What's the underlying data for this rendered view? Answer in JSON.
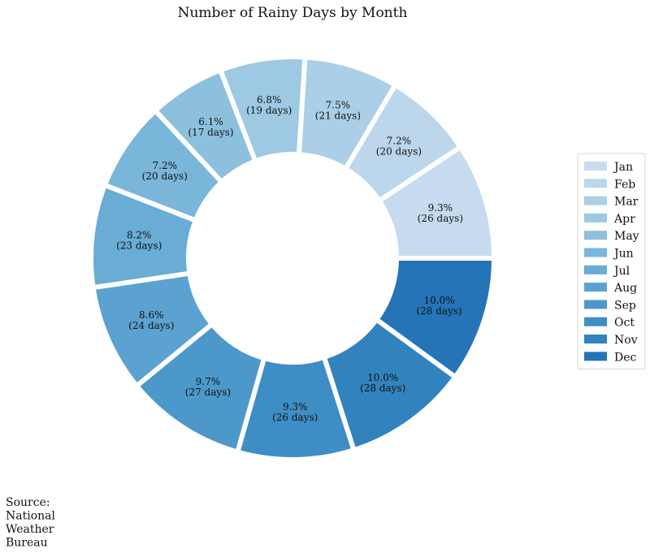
{
  "chart_data": {
    "type": "pie",
    "variant": "donut",
    "title": "Number of Rainy Days by Month",
    "start_angle_deg": 0,
    "direction": "counterclockwise",
    "unit_suffix": "days",
    "slices": [
      {
        "label": "Jan",
        "value": 26,
        "percent_label": "9.3%",
        "color": "#c6dbef"
      },
      {
        "label": "Feb",
        "value": 20,
        "percent_label": "7.2%",
        "color": "#bcd7ec"
      },
      {
        "label": "Mar",
        "value": 21,
        "percent_label": "7.5%",
        "color": "#aacfe6"
      },
      {
        "label": "Apr",
        "value": 19,
        "percent_label": "6.8%",
        "color": "#9dc9e2"
      },
      {
        "label": "May",
        "value": 17,
        "percent_label": "6.1%",
        "color": "#8dc0dd"
      },
      {
        "label": "Jun",
        "value": 20,
        "percent_label": "7.2%",
        "color": "#7ab6d9"
      },
      {
        "label": "Jul",
        "value": 23,
        "percent_label": "8.2%",
        "color": "#69acd5"
      },
      {
        "label": "Aug",
        "value": 24,
        "percent_label": "8.6%",
        "color": "#5ba2d0"
      },
      {
        "label": "Sep",
        "value": 27,
        "percent_label": "9.7%",
        "color": "#4d98ca"
      },
      {
        "label": "Oct",
        "value": 26,
        "percent_label": "9.3%",
        "color": "#3f8dc5"
      },
      {
        "label": "Nov",
        "value": 28,
        "percent_label": "10.0%",
        "color": "#3282be"
      },
      {
        "label": "Dec",
        "value": 28,
        "percent_label": "10.0%",
        "color": "#2474b7"
      }
    ],
    "legend_placement": "right",
    "source_note": "Source:\nNational\nWeather\nBureau"
  }
}
